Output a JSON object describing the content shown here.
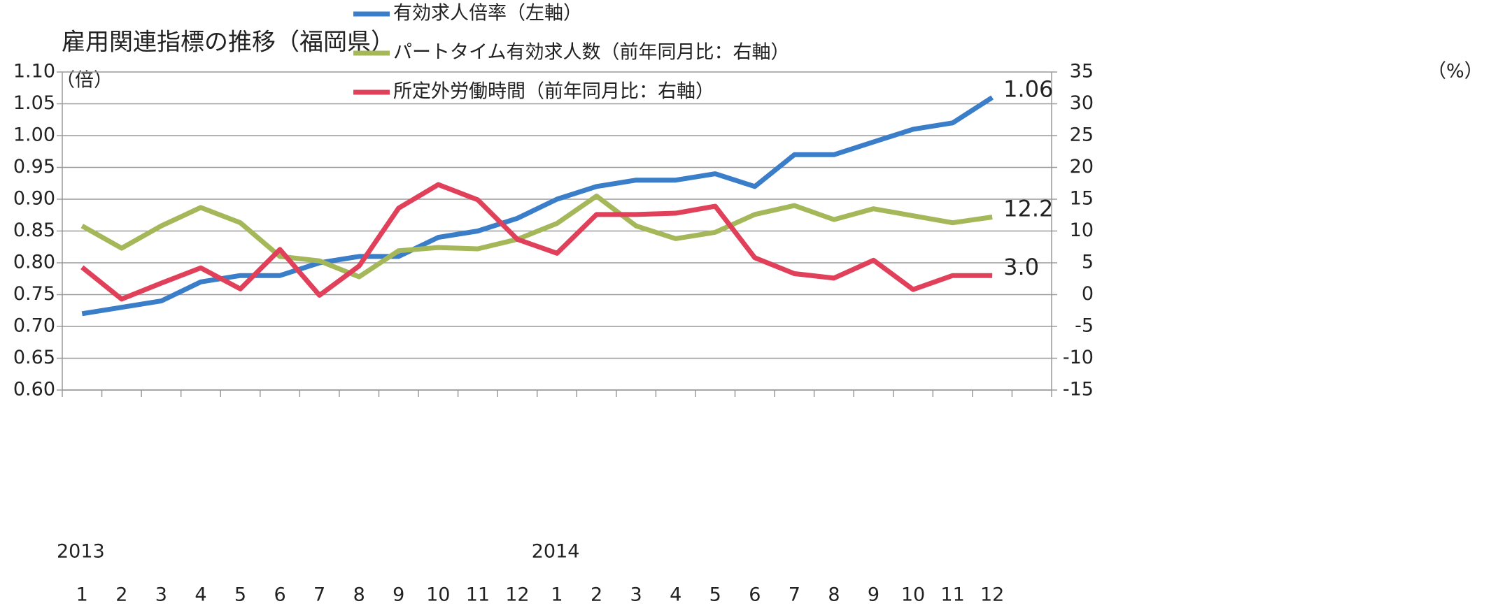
{
  "chart_data": {
    "type": "line",
    "title": "雇用関連指標の推移（福岡県）",
    "ylabel": "（倍）",
    "y2label": "（%）",
    "categories": [
      "1",
      "2",
      "3",
      "4",
      "5",
      "6",
      "7",
      "8",
      "9",
      "10",
      "11",
      "12",
      "1",
      "2",
      "3",
      "4",
      "5",
      "6",
      "7",
      "8",
      "9",
      "10",
      "11",
      "12",
      null
    ],
    "x_groups": [
      {
        "label": "2013",
        "start": 0
      },
      {
        "label": "2014",
        "start": 12
      }
    ],
    "ylim": [
      0.6,
      1.1
    ],
    "yticks": [
      {
        "value": 0.6,
        "label": "0.60"
      },
      0.65,
      {
        "value": 0.7,
        "label": "0.70"
      },
      0.75,
      {
        "value": 0.8,
        "label": "0.80"
      },
      0.85,
      {
        "value": 0.9,
        "label": "0.90"
      },
      0.95,
      {
        "value": 1.0,
        "label": "1.00"
      },
      1.05,
      {
        "value": 1.1,
        "label": "1.10"
      }
    ],
    "y2lim": [
      -15,
      35
    ],
    "y2ticks": [
      -15,
      -10,
      -5,
      0,
      5,
      10,
      15,
      20,
      25,
      30,
      35
    ],
    "grid": true,
    "series": [
      {
        "name": "有効求人倍率（左軸）",
        "color": "#3a7dc9",
        "values": [
          0.72,
          0.73,
          0.74,
          0.77,
          0.78,
          0.78,
          0.8,
          0.81,
          0.81,
          0.84,
          0.85,
          0.87,
          0.9,
          0.92,
          0.93,
          0.93,
          0.94,
          0.92,
          0.97,
          0.97,
          0.99,
          1.01,
          1.02,
          1.06,
          null
        ],
        "value_labels": [
          null,
          null,
          null,
          null,
          null,
          null,
          null,
          null,
          null,
          null,
          null,
          null,
          null,
          null,
          null,
          null,
          null,
          null,
          null,
          null,
          null,
          null,
          null,
          "1.06",
          null
        ]
      },
      {
        "name": "パートタイム有効求人数（前年同月比：右軸）",
        "color": "#a4b85a",
        "axis": "y2",
        "values": [
          10.8,
          7.3,
          10.8,
          13.7,
          11.3,
          6.0,
          5.3,
          2.8,
          6.9,
          7.4,
          7.2,
          8.7,
          11.2,
          15.5,
          10.8,
          8.8,
          9.8,
          12.6,
          14.0,
          11.8,
          13.5,
          12.4,
          11.3,
          12.2,
          null
        ],
        "value_labels": [
          null,
          null,
          null,
          null,
          null,
          null,
          null,
          null,
          null,
          null,
          null,
          null,
          null,
          null,
          null,
          null,
          null,
          null,
          null,
          null,
          null,
          null,
          null,
          "12.2",
          null
        ]
      },
      {
        "name": "所定外労働時間（前年同月比：右軸）",
        "color": "#e0405a",
        "axis": "y2",
        "values": [
          4.3,
          -0.7,
          1.8,
          4.2,
          0.9,
          7.1,
          -0.1,
          4.5,
          13.6,
          17.3,
          14.9,
          8.7,
          6.5,
          12.6,
          12.6,
          12.8,
          13.9,
          5.8,
          3.3,
          2.6,
          5.4,
          0.8,
          3.0,
          3.0,
          null
        ],
        "value_labels": [
          null,
          null,
          null,
          null,
          null,
          null,
          null,
          null,
          null,
          null,
          null,
          null,
          null,
          null,
          null,
          null,
          null,
          null,
          null,
          null,
          null,
          null,
          null,
          "3.0",
          null
        ]
      }
    ]
  }
}
